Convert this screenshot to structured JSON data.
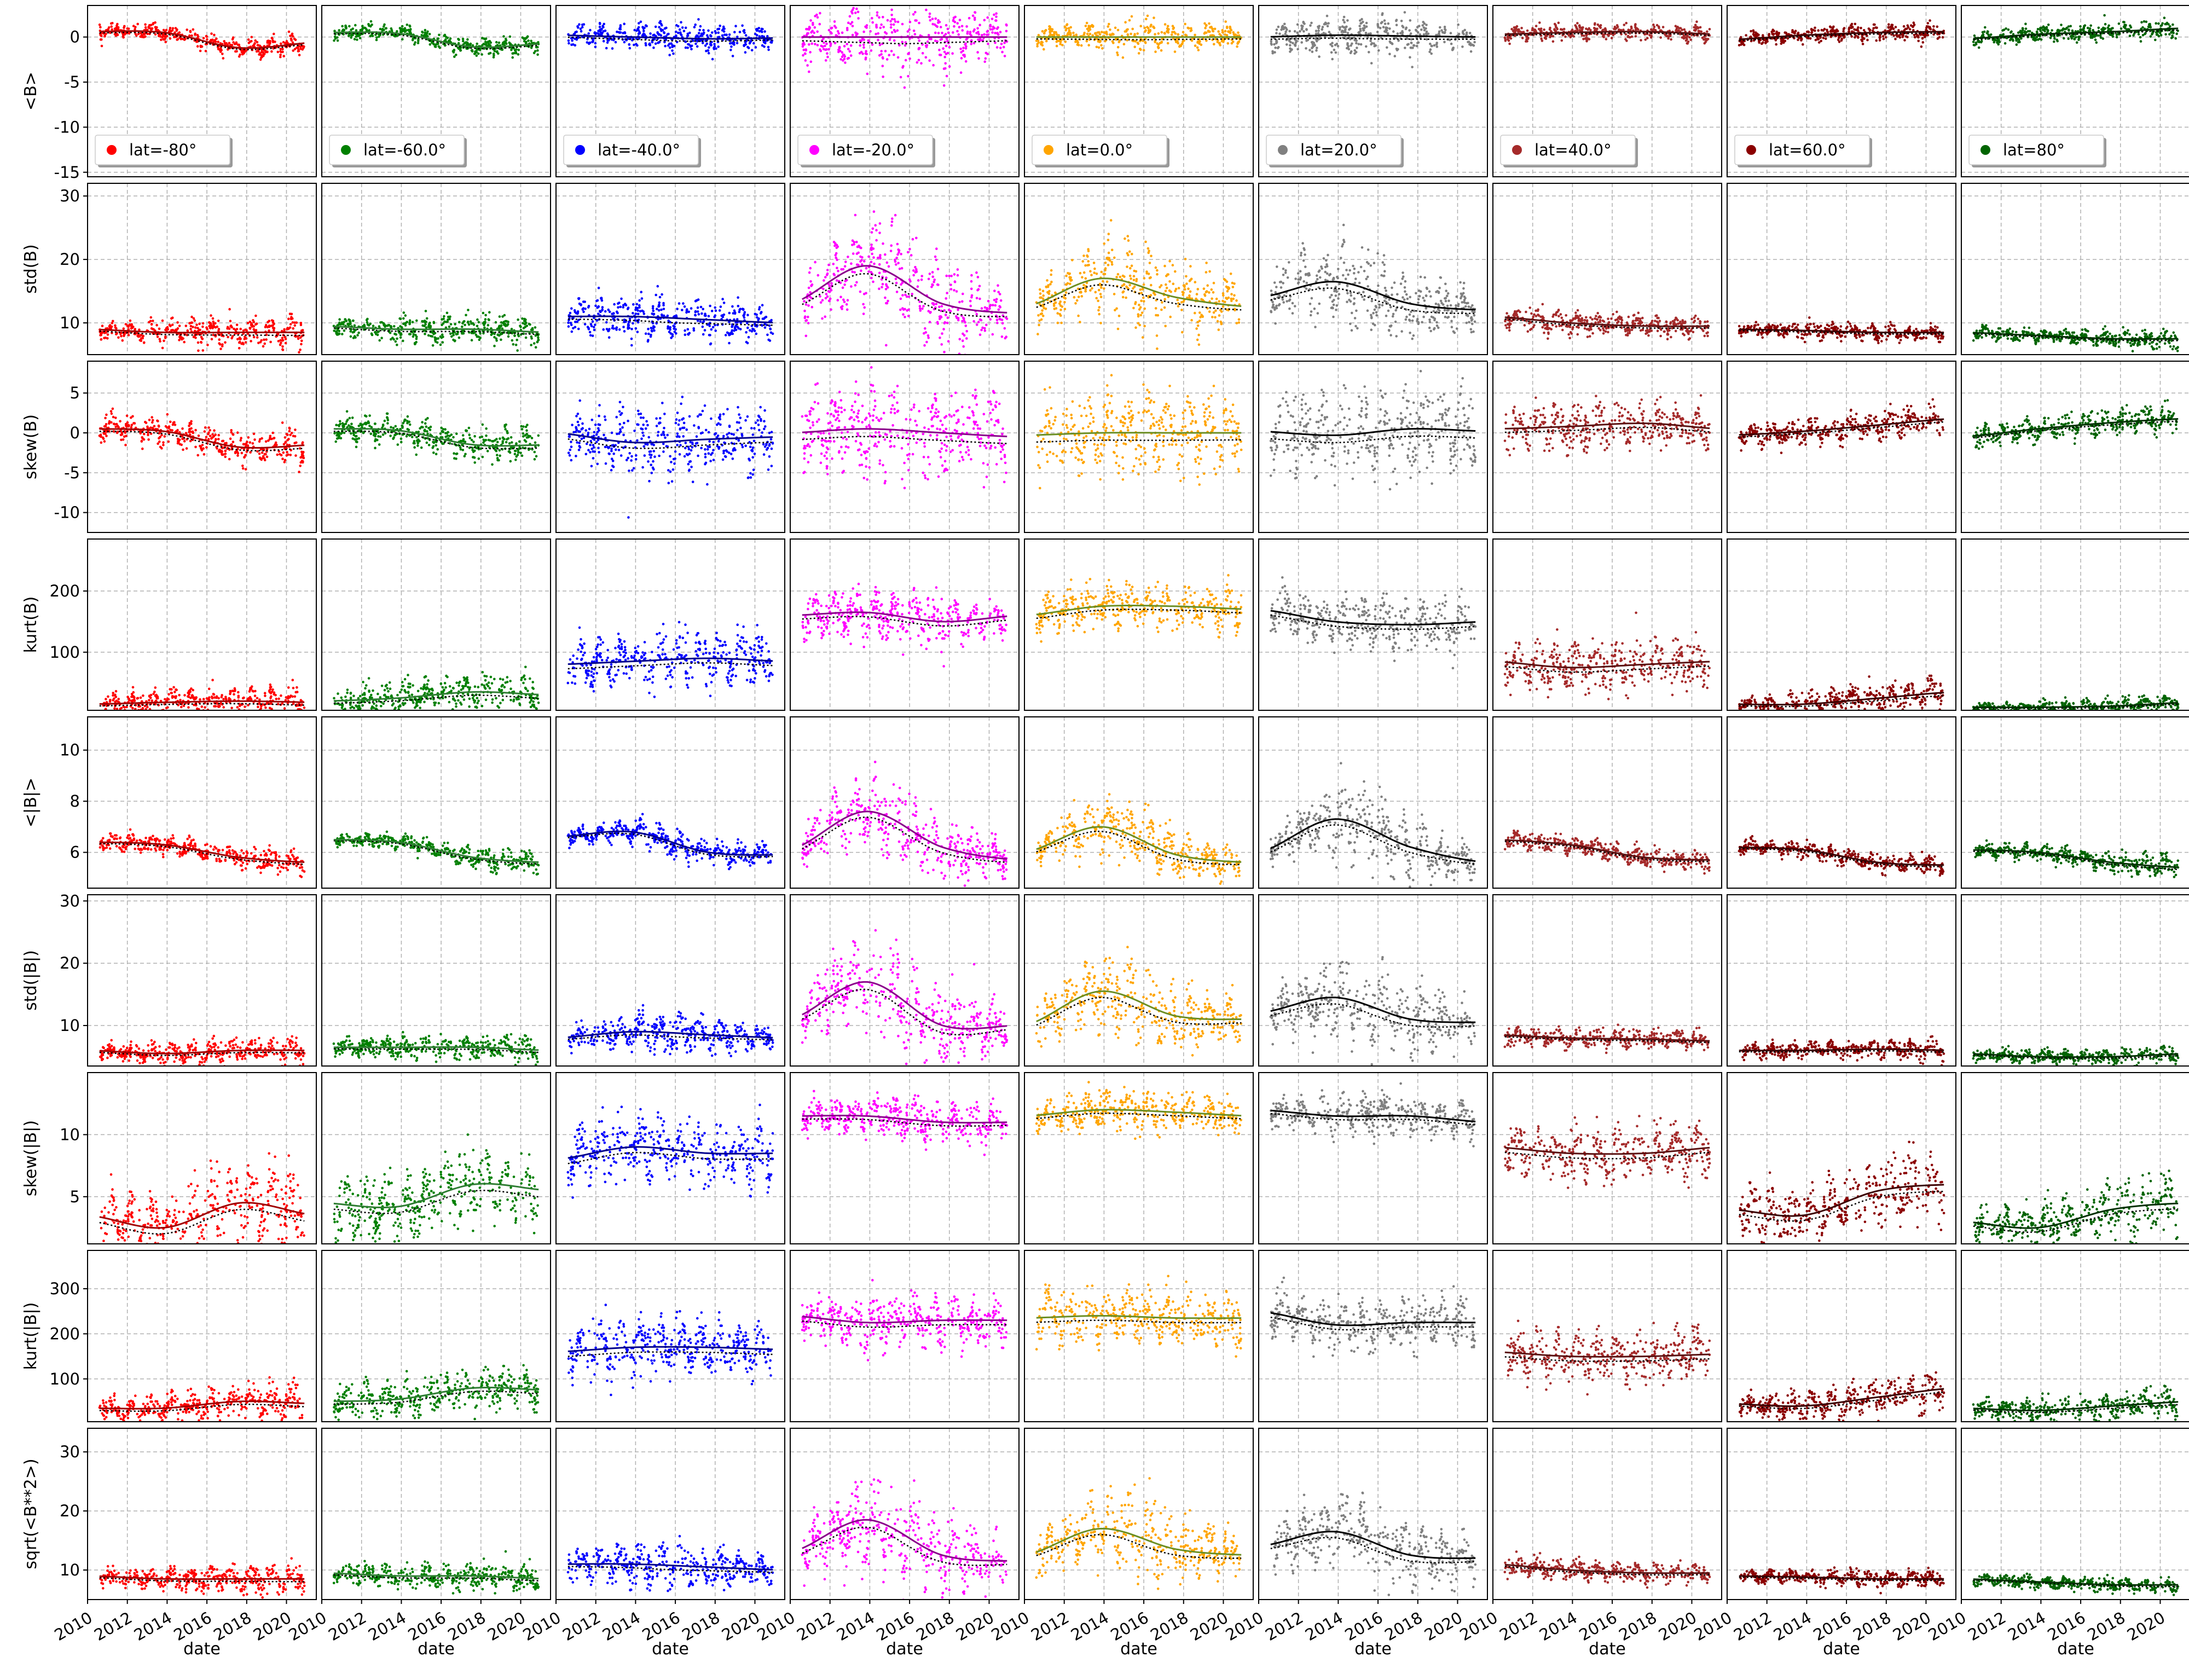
{
  "chart_data": {
    "type": "scatter",
    "layout": "grid of 9 columns x 9 rows",
    "grid": true,
    "legend_placement": "lower-left of first row",
    "xlabel": "date",
    "x_range": [
      2010,
      2021.5
    ],
    "x_ticks": [
      "2010",
      "2012",
      "2014",
      "2016",
      "2018",
      "2020"
    ],
    "columns": [
      {
        "legend": "lat=-80°",
        "color": "#ff0000"
      },
      {
        "legend": "lat=-60.0°",
        "color": "#008000"
      },
      {
        "legend": "lat=-40.0°",
        "color": "#0000ff"
      },
      {
        "legend": "lat=-20.0°",
        "color": "#ff00ff"
      },
      {
        "legend": "lat=0.0°",
        "color": "#ffa500"
      },
      {
        "legend": "lat=20.0°",
        "color": "#808080"
      },
      {
        "legend": "lat=40.0°",
        "color": "#a52a2a"
      },
      {
        "legend": "lat=60.0°",
        "color": "#8b0000"
      },
      {
        "legend": "lat=80°",
        "color": "#006400"
      }
    ],
    "trend_colors": [
      "#a00000",
      "#2e7d32",
      "#00008b",
      "#8b008b",
      "#6b8e23",
      "#000000",
      "#5a1010",
      "#3a0000",
      "#003000"
    ],
    "rows": [
      {
        "ylabel": "<B>",
        "ylim": [
          -15.5,
          3.5
        ],
        "yticks": [
          -15,
          -10,
          -5,
          0
        ],
        "trend": [
          [
            0.6,
            0.5,
            -1.2,
            -0.6
          ],
          [
            0.5,
            0.4,
            -1.1,
            -0.7
          ],
          [
            0.2,
            0.0,
            -0.2,
            -0.1
          ],
          [
            0,
            0,
            0,
            0
          ],
          [
            0,
            0,
            0,
            0
          ],
          [
            0,
            0.2,
            0.1,
            0
          ],
          [
            0.3,
            0.5,
            0.6,
            0.3
          ],
          [
            -0.3,
            0.2,
            0.5,
            0.6
          ],
          [
            -0.2,
            0.3,
            0.6,
            1.0
          ]
        ],
        "noise": [
          [
            0.6,
            0.6,
            0.7
          ],
          [
            0.6,
            0.6,
            0.7
          ],
          [
            0.8,
            1.2,
            0.8
          ],
          [
            1.5,
            3,
            1.5
          ],
          [
            0.8,
            1.2,
            0.8
          ],
          [
            1,
            1.5,
            1
          ],
          [
            0.6,
            0.6,
            0.6
          ],
          [
            0.6,
            0.6,
            0.7
          ],
          [
            0.6,
            0.6,
            0.8
          ]
        ]
      },
      {
        "ylabel": "std(B)",
        "ylim": [
          5,
          32
        ],
        "yticks": [
          10,
          20,
          30
        ],
        "trend": [
          [
            9,
            8.5,
            8.5,
            8.5
          ],
          [
            9.5,
            9,
            9,
            8.5
          ],
          [
            11,
            11,
            10.5,
            10
          ],
          [
            13,
            19,
            13,
            11.5
          ],
          [
            12.5,
            17,
            14,
            12.5
          ],
          [
            14,
            16.5,
            13,
            12
          ],
          [
            11,
            10,
            9.5,
            9.5
          ],
          [
            9,
            8.8,
            8.5,
            8.5
          ],
          [
            8.5,
            8,
            7.5,
            7.5
          ]
        ],
        "noise": [
          [
            1,
            1.5,
            2
          ],
          [
            1,
            1.5,
            1.5
          ],
          [
            1.5,
            3,
            1.5
          ],
          [
            3,
            6,
            2
          ],
          [
            2,
            5,
            2
          ],
          [
            2.5,
            5,
            2
          ],
          [
            1.2,
            1.2,
            1.2
          ],
          [
            0.8,
            0.9,
            1
          ],
          [
            0.7,
            0.7,
            1.2
          ]
        ]
      },
      {
        "ylabel": "skew(B)",
        "ylim": [
          -12.5,
          9
        ],
        "yticks": [
          -10,
          -5,
          0,
          5
        ],
        "trend": [
          [
            0.5,
            0.2,
            -1.8,
            -1.5
          ],
          [
            0.5,
            0.3,
            -1.5,
            -1.5
          ],
          [
            0,
            -1.2,
            -0.8,
            -0.5
          ],
          [
            0,
            0.5,
            0,
            -0.5
          ],
          [
            -0.3,
            0,
            0,
            0
          ],
          [
            0.2,
            -0.3,
            0.5,
            0.2
          ],
          [
            0.5,
            0.8,
            1.2,
            0.5
          ],
          [
            -0.3,
            0.2,
            1,
            1.8
          ],
          [
            -0.5,
            0.5,
            1.3,
            1.8
          ]
        ],
        "noise": [
          [
            1.2,
            1.3,
            1.6
          ],
          [
            1.2,
            1.3,
            1.6
          ],
          [
            2.5,
            3,
            2.5
          ],
          [
            3.5,
            4,
            3.5
          ],
          [
            3.5,
            3.8,
            3.5
          ],
          [
            3.5,
            3.8,
            3.5
          ],
          [
            1.8,
            2.2,
            1.8
          ],
          [
            1,
            1.2,
            1.4
          ],
          [
            0.9,
            1,
            1.2
          ]
        ]
      },
      {
        "ylabel": "kurt(B)",
        "ylim": [
          5,
          285
        ],
        "yticks": [
          100,
          200
        ],
        "trend": [
          [
            15,
            18,
            20,
            18
          ],
          [
            20,
            25,
            35,
            30
          ],
          [
            80,
            85,
            90,
            85
          ],
          [
            160,
            165,
            150,
            160
          ],
          [
            160,
            175,
            175,
            170
          ],
          [
            170,
            150,
            145,
            150
          ],
          [
            85,
            75,
            80,
            85
          ],
          [
            15,
            15,
            25,
            35
          ],
          [
            10,
            10,
            12,
            18
          ]
        ],
        "noise": [
          [
            12,
            15,
            20
          ],
          [
            15,
            20,
            25
          ],
          [
            30,
            30,
            30
          ],
          [
            25,
            30,
            25
          ],
          [
            25,
            25,
            25
          ],
          [
            30,
            30,
            30
          ],
          [
            30,
            30,
            30
          ],
          [
            10,
            15,
            20
          ],
          [
            6,
            8,
            10
          ]
        ]
      },
      {
        "ylabel": "<|B|>",
        "ylim": [
          4.6,
          11.3
        ],
        "yticks": [
          6,
          8,
          10
        ],
        "trend": [
          [
            6.4,
            6.3,
            5.8,
            5.6
          ],
          [
            6.5,
            6.4,
            5.8,
            5.6
          ],
          [
            6.6,
            6.8,
            6.0,
            5.9
          ],
          [
            6.1,
            7.6,
            6.2,
            5.7
          ],
          [
            6.0,
            7.0,
            5.9,
            5.6
          ],
          [
            6.0,
            7.3,
            6.2,
            5.6
          ],
          [
            6.5,
            6.3,
            5.8,
            5.7
          ],
          [
            6.2,
            6.1,
            5.6,
            5.5
          ],
          [
            6.1,
            6.0,
            5.6,
            5.4
          ]
        ],
        "noise": [
          [
            0.2,
            0.3,
            0.35
          ],
          [
            0.15,
            0.25,
            0.3
          ],
          [
            0.2,
            0.4,
            0.25
          ],
          [
            0.5,
            1.1,
            0.45
          ],
          [
            0.35,
            0.9,
            0.35
          ],
          [
            0.5,
            1.1,
            0.4
          ],
          [
            0.2,
            0.25,
            0.25
          ],
          [
            0.2,
            0.25,
            0.25
          ],
          [
            0.2,
            0.25,
            0.35
          ]
        ]
      },
      {
        "ylabel": "std(|B|)",
        "ylim": [
          3.5,
          31
        ],
        "yticks": [
          10,
          20,
          30
        ],
        "trend": [
          [
            6,
            5.5,
            6,
            6
          ],
          [
            6.5,
            6.5,
            6.5,
            6
          ],
          [
            8,
            9,
            8.5,
            8
          ],
          [
            11,
            17,
            10,
            10
          ],
          [
            10,
            15.5,
            11.5,
            11
          ],
          [
            12,
            14.5,
            11,
            10.5
          ],
          [
            8.5,
            8,
            7.8,
            7.5
          ],
          [
            6,
            6,
            6.2,
            6
          ],
          [
            5.5,
            5,
            5,
            5.5
          ]
        ],
        "noise": [
          [
            1,
            1.3,
            1.6
          ],
          [
            1,
            1.3,
            1.5
          ],
          [
            1.2,
            2.5,
            1.2
          ],
          [
            2.5,
            6,
            2
          ],
          [
            2,
            5,
            2
          ],
          [
            2.5,
            5,
            2
          ],
          [
            1,
            1,
            1
          ],
          [
            0.8,
            1,
            1.2
          ],
          [
            0.7,
            0.8,
            1.2
          ]
        ]
      },
      {
        "ylabel": "skew(|B|)",
        "ylim": [
          1.2,
          15
        ],
        "yticks": [
          5,
          10
        ],
        "trend": [
          [
            3.5,
            2.5,
            4.5,
            3.5
          ],
          [
            4.5,
            4.2,
            6,
            5.5
          ],
          [
            8,
            9,
            8.5,
            8.5
          ],
          [
            11.5,
            11.5,
            11,
            11
          ],
          [
            11.5,
            12,
            11.8,
            11.5
          ],
          [
            12,
            11.5,
            11.5,
            11
          ],
          [
            9,
            8.5,
            8.5,
            9
          ],
          [
            4,
            3.5,
            5.5,
            6
          ],
          [
            3,
            2.5,
            4,
            4.5
          ]
        ],
        "noise": [
          [
            1.8,
            2,
            2.4
          ],
          [
            1.8,
            2,
            2.4
          ],
          [
            1.8,
            1.8,
            1.8
          ],
          [
            1,
            1.2,
            1
          ],
          [
            1,
            1.2,
            1
          ],
          [
            1,
            1.2,
            1
          ],
          [
            1.5,
            1.5,
            1.5
          ],
          [
            1.4,
            1.8,
            2.2
          ],
          [
            1.2,
            1.4,
            1.8
          ]
        ]
      },
      {
        "ylabel": "kurt(|B|)",
        "ylim": [
          5,
          385
        ],
        "yticks": [
          100,
          200,
          300
        ],
        "trend": [
          [
            35,
            35,
            50,
            45
          ],
          [
            50,
            55,
            80,
            75
          ],
          [
            160,
            170,
            170,
            165
          ],
          [
            240,
            225,
            230,
            230
          ],
          [
            235,
            240,
            235,
            235
          ],
          [
            250,
            220,
            225,
            225
          ],
          [
            160,
            150,
            150,
            155
          ],
          [
            45,
            40,
            60,
            80
          ],
          [
            35,
            30,
            40,
            50
          ]
        ],
        "noise": [
          [
            20,
            25,
            30
          ],
          [
            25,
            30,
            35
          ],
          [
            45,
            45,
            45
          ],
          [
            40,
            40,
            40
          ],
          [
            40,
            40,
            40
          ],
          [
            40,
            40,
            40
          ],
          [
            40,
            40,
            40
          ],
          [
            18,
            25,
            30
          ],
          [
            15,
            20,
            25
          ]
        ]
      },
      {
        "ylabel": "sqrt(<B**2>)",
        "ylim": [
          5,
          34
        ],
        "yticks": [
          10,
          20,
          30
        ],
        "trend": [
          [
            9,
            8.5,
            8.5,
            8.5
          ],
          [
            9.5,
            9,
            9,
            8.5
          ],
          [
            11,
            11,
            10.5,
            10
          ],
          [
            13,
            18.5,
            12.5,
            11.5
          ],
          [
            12.5,
            17,
            13.5,
            12.5
          ],
          [
            14,
            16.5,
            12.5,
            12
          ],
          [
            11,
            10,
            9.5,
            9.5
          ],
          [
            9,
            8.8,
            8.5,
            8.5
          ],
          [
            8.5,
            8,
            7.5,
            7.5
          ]
        ],
        "noise": [
          [
            1,
            1.5,
            2
          ],
          [
            1,
            1.5,
            1.5
          ],
          [
            1.5,
            3,
            1.5
          ],
          [
            3,
            6,
            2
          ],
          [
            2,
            5,
            2
          ],
          [
            2.5,
            5,
            2
          ],
          [
            1.2,
            1.2,
            1.2
          ],
          [
            0.8,
            0.9,
            1
          ],
          [
            0.7,
            0.7,
            1.2
          ]
        ]
      }
    ]
  }
}
